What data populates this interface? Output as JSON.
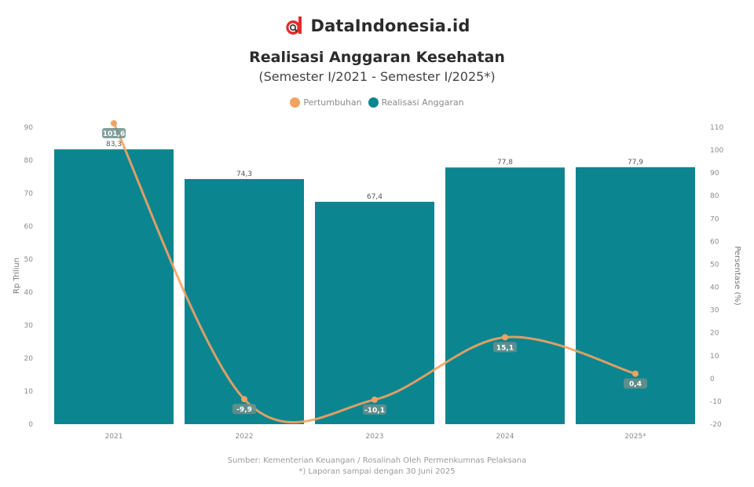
{
  "header": {
    "brand_name": "DataIndonesia.id",
    "brand_color": "#e32b2b"
  },
  "chart_data": {
    "type": "bar",
    "title": "Realisasi Anggaran Kesehatan",
    "subtitle": "(Semester I/2021 - Semester I/2025*)",
    "categories": [
      "2021",
      "2022",
      "2023",
      "2024",
      "2025*"
    ],
    "series": [
      {
        "name": "Realisasi Anggaran",
        "type": "bar",
        "axis": "left",
        "color": "#0b8590",
        "values": [
          83.3,
          74.3,
          67.4,
          77.8,
          77.9
        ],
        "labels": [
          "83,3",
          "74,3",
          "67,4",
          "77,8",
          "77,9"
        ]
      },
      {
        "name": "Pertumbuhan",
        "type": "line",
        "axis": "right",
        "color": "#f4a261",
        "values": [
          101.6,
          -9.9,
          -10.1,
          15.1,
          0.4
        ],
        "labels": [
          "101,6",
          "-9,9",
          "-10,1",
          "15,1",
          "0,4"
        ]
      }
    ],
    "ylabel": "Rp Triliun",
    "ylabel_right": "Persentase (%)",
    "ylim": [
      0,
      90
    ],
    "yticks": [
      "0",
      "10",
      "20",
      "30",
      "40",
      "50",
      "60",
      "70",
      "80",
      "90"
    ],
    "ylim_right": [
      -20,
      100
    ],
    "yticks_right": [
      "-20",
      "-10",
      "0",
      "10",
      "20",
      "30",
      "40",
      "50",
      "60",
      "70",
      "80",
      "90",
      "100",
      "110"
    ],
    "grid": false,
    "legend": "top-center"
  },
  "footer": {
    "source": "Sumber: Kementerian Keuangan / Rosalinah Oleh Permenkumnas Pelaksana",
    "note": "*) Laporan sampai dengan 30 Juni 2025"
  }
}
